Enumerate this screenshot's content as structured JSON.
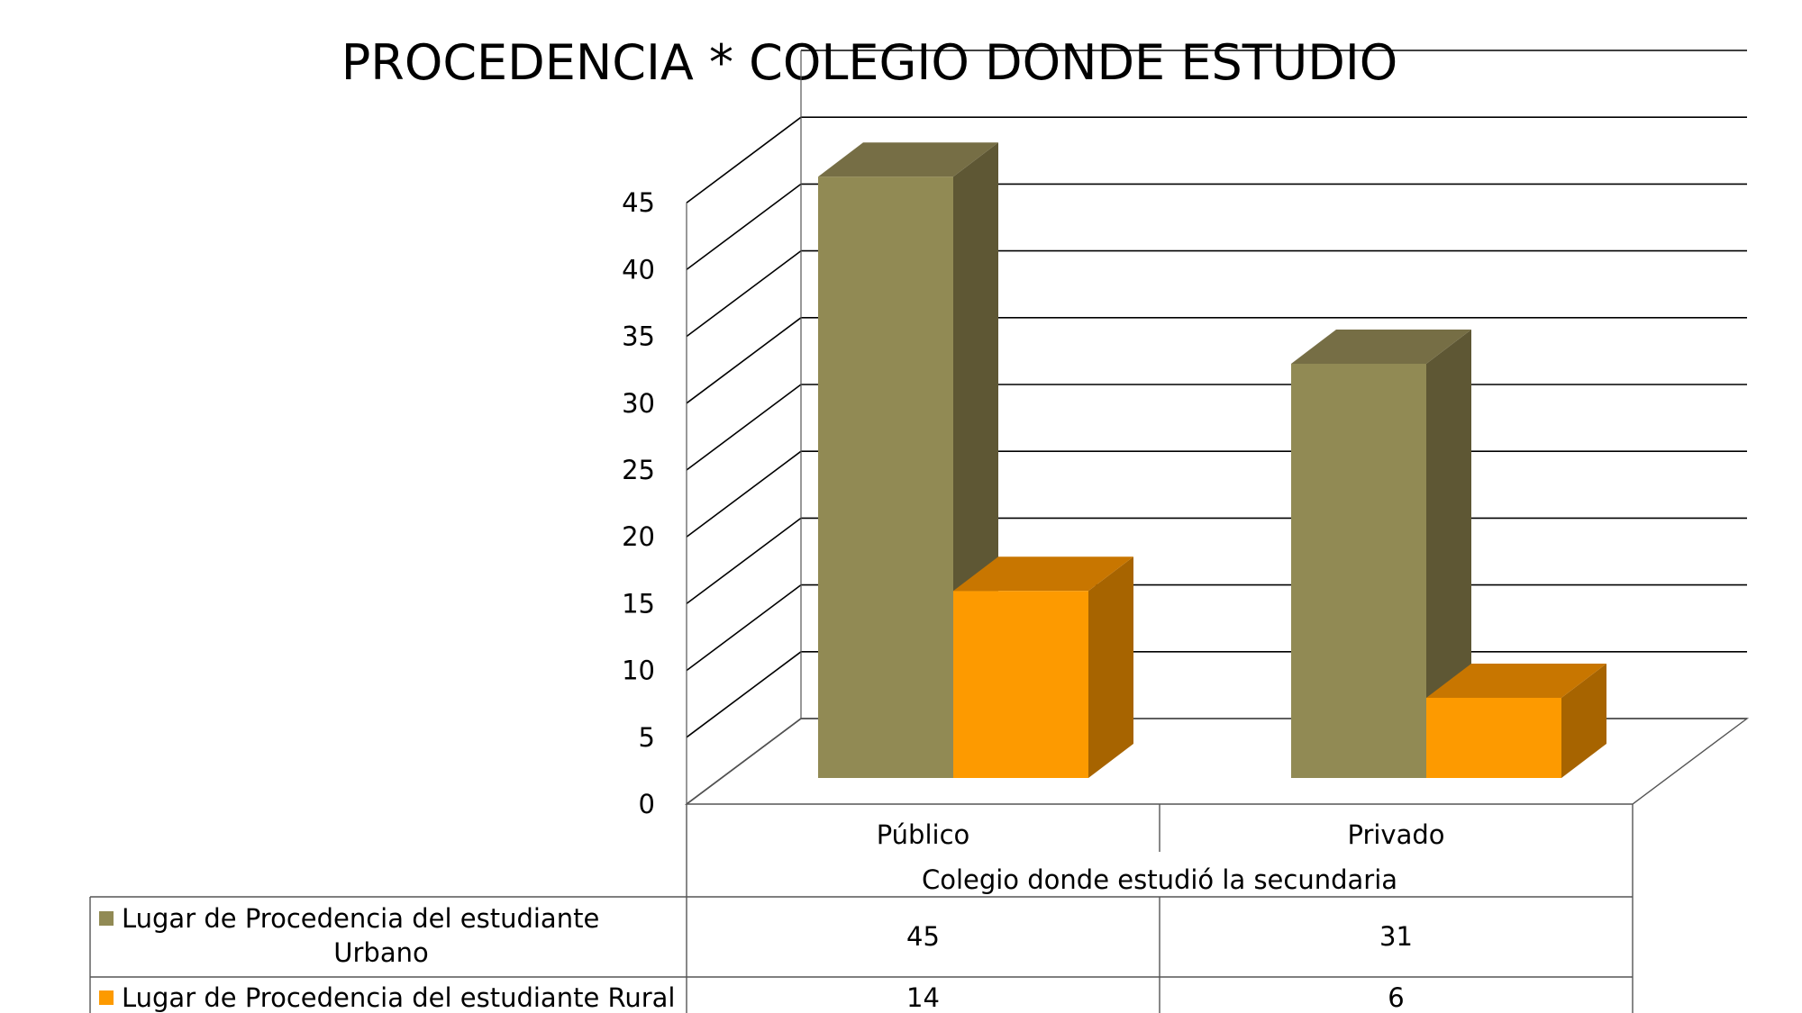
{
  "chart_data": {
    "type": "bar",
    "title": "PROCEDENCIA * COLEGIO DONDE ESTUDIO",
    "xlabel": "Colegio donde estudió la secundaria",
    "ylabel": "",
    "ylim": [
      0,
      45
    ],
    "ytick_step": 5,
    "categories": [
      "Público",
      "Privado"
    ],
    "series": [
      {
        "name": "Lugar de Procedencia del estudiante Urbano",
        "values": [
          45,
          31
        ],
        "color": "#918a54",
        "side_color": "#5e5734",
        "top_color": "#766e45"
      },
      {
        "name": "Lugar de Procedencia del estudiante Rural",
        "values": [
          14,
          6
        ],
        "color": "#fd9a00",
        "side_color": "#a76400",
        "top_color": "#c87600"
      }
    ],
    "grid": true,
    "legend": "data-table-below",
    "style": "3d-column"
  }
}
